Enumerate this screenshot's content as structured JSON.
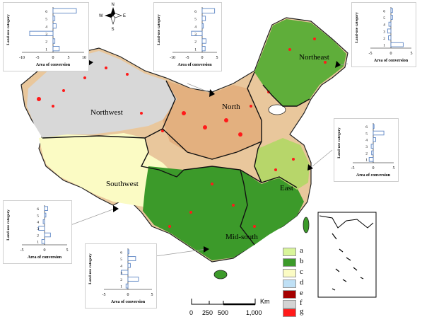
{
  "regions": {
    "northwest": "Northwest",
    "north": "North",
    "northeast": "Northeast",
    "southwest": "Southwest",
    "east": "East",
    "midsouth": "Mid-south"
  },
  "legend": [
    {
      "label": "a",
      "color": "#d9f59a"
    },
    {
      "label": "b",
      "color": "#3c9a2a"
    },
    {
      "label": "c",
      "color": "#fbfbc4"
    },
    {
      "label": "d",
      "color": "#bfe0f5"
    },
    {
      "label": "e",
      "color": "#a50000"
    },
    {
      "label": "f",
      "color": "#d3d3d3"
    },
    {
      "label": "g",
      "color": "#ff1a1a"
    }
  ],
  "compass": {
    "n": "N",
    "s": "S",
    "e": "E",
    "w": "W"
  },
  "scale": {
    "ticks": [
      "0",
      "250",
      "500",
      "1,000"
    ],
    "unit": "Km"
  },
  "chart_data": [
    {
      "type": "bar",
      "region": "Northwest",
      "categories": [
        "1",
        "2",
        "3",
        "4",
        "5",
        "6"
      ],
      "values": [
        2.0,
        0.6,
        -7.5,
        1.0,
        0.6,
        7.5
      ],
      "xlim": [
        -10,
        10
      ],
      "xticks": [
        "-10",
        "-5",
        "0",
        "5",
        "10"
      ],
      "xlabel": "Area of conversion",
      "ylabel": "Land-use category"
    },
    {
      "type": "bar",
      "region": "North",
      "categories": [
        "1",
        "2",
        "3",
        "4",
        "5",
        "6"
      ],
      "values": [
        1.0,
        1.3,
        -3.6,
        0.4,
        1.1,
        4.2
      ],
      "xlim": [
        -10,
        5
      ],
      "xticks": [
        "-10",
        "-5",
        "0",
        "5"
      ],
      "xlabel": "Area of conversion",
      "ylabel": "Land-use category"
    },
    {
      "type": "bar",
      "region": "Northeast",
      "categories": [
        "1",
        "2",
        "3",
        "4",
        "5",
        "6"
      ],
      "values": [
        3.0,
        -0.6,
        -0.8,
        -0.5,
        0.4,
        0.4
      ],
      "xlim": [
        -5,
        5
      ],
      "xticks": [
        "-5",
        "0",
        "5"
      ],
      "xlabel": "Area of conversion",
      "ylabel": "Land-use category"
    },
    {
      "type": "bar",
      "region": "East",
      "categories": [
        "1",
        "2",
        "3",
        "4",
        "5",
        "6"
      ],
      "values": [
        -1.0,
        -0.4,
        -0.5,
        0.6,
        2.6,
        0.2
      ],
      "xlim": [
        -5,
        5
      ],
      "xticks": [
        "-5",
        "0",
        "5"
      ],
      "xlabel": "Area of conversion",
      "ylabel": "Land-use category"
    },
    {
      "type": "bar",
      "region": "Southwest",
      "categories": [
        "1",
        "2",
        "3",
        "4",
        "5",
        "6"
      ],
      "values": [
        -0.6,
        1.3,
        -1.3,
        -0.3,
        0.3,
        0.7
      ],
      "xlim": [
        -5,
        5
      ],
      "xticks": [
        "-5",
        "0",
        "5"
      ],
      "xlabel": "Area of conversion",
      "ylabel": "Land-use category"
    },
    {
      "type": "bar",
      "region": "Mid-south",
      "categories": [
        "1",
        "2",
        "3",
        "4",
        "5",
        "6"
      ],
      "values": [
        -0.4,
        2.2,
        -1.4,
        0.5,
        1.6,
        0.2
      ],
      "xlim": [
        -5,
        5
      ],
      "xticks": [
        "-5",
        "0",
        "5"
      ],
      "xlabel": "Area of conversion",
      "ylabel": "Land-use category"
    }
  ]
}
